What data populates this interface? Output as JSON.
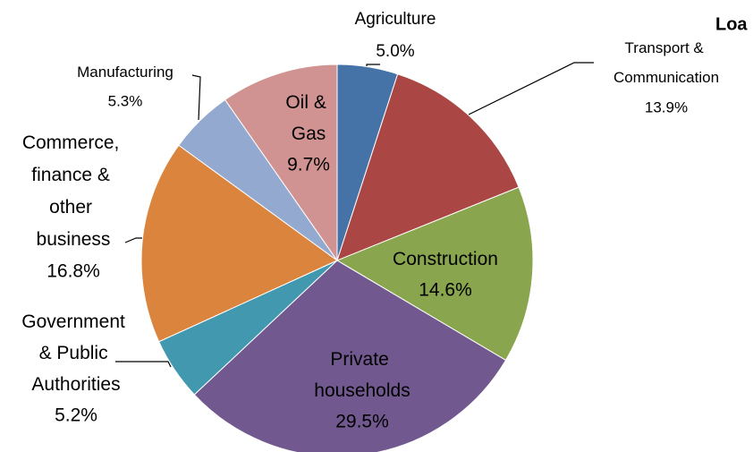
{
  "chart_data": {
    "type": "pie",
    "title": "Loa",
    "categories": [
      "Agriculture",
      "Transport & Communication",
      "Construction",
      "Private households",
      "Government & Public Authorities",
      "Commerce, finance & other business",
      "Manufacturing",
      "Oil & Gas"
    ],
    "values": [
      5.0,
      13.9,
      14.6,
      29.5,
      5.2,
      16.8,
      5.3,
      9.7
    ],
    "value_labels": [
      "5.0%",
      "13.9%",
      "14.6%",
      "29.5%",
      "5.2%",
      "16.8%",
      "5.3%",
      "9.7%"
    ],
    "colors": [
      "#4572a7",
      "#aa4643",
      "#89a54e",
      "#71588f",
      "#4198af",
      "#db843d",
      "#93a9cf",
      "#d19392"
    ]
  }
}
